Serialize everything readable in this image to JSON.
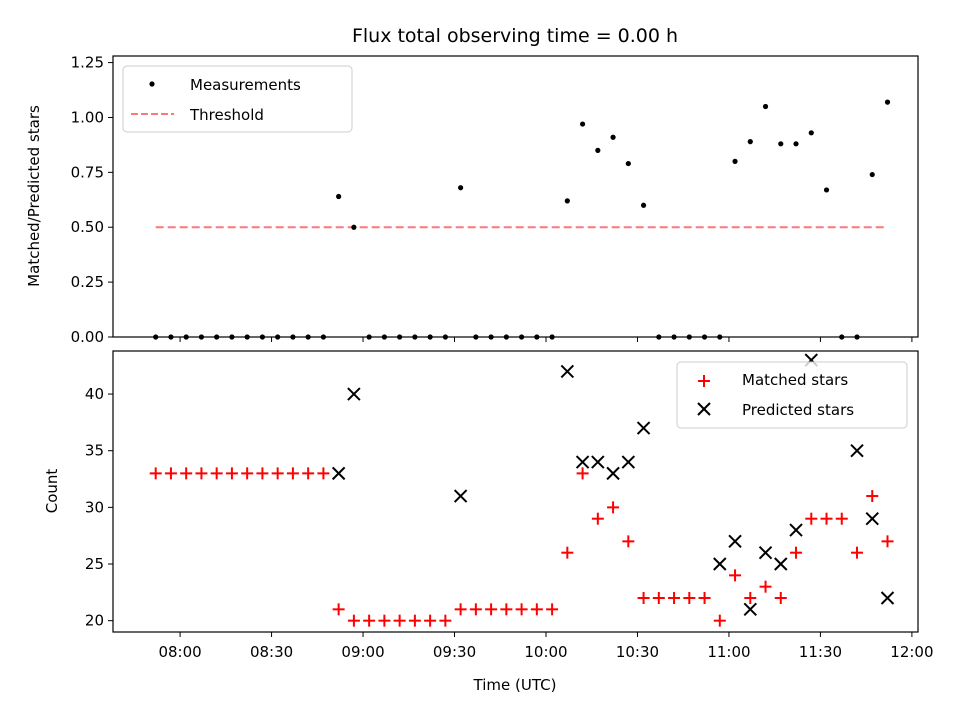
{
  "chart_data": [
    {
      "type": "scatter",
      "title": "Flux total observing time = 0.00 h",
      "xlabel": "",
      "ylabel": "Matched/Predicted stars",
      "ylim": [
        0,
        1.28
      ],
      "yticks": [
        "0.00",
        "0.25",
        "0.50",
        "0.75",
        "1.00",
        "1.25"
      ],
      "ytick_values": [
        0,
        0.25,
        0.5,
        0.75,
        1.0,
        1.25
      ],
      "legend_position": "top-left",
      "grid": false,
      "series": [
        {
          "name": "Measurements",
          "marker": "dot",
          "color": "#000000",
          "x": [
            "07:52",
            "07:57",
            "08:02",
            "08:07",
            "08:12",
            "08:17",
            "08:22",
            "08:27",
            "08:32",
            "08:37",
            "08:42",
            "08:47",
            "08:52",
            "08:57",
            "09:02",
            "09:07",
            "09:12",
            "09:17",
            "09:22",
            "09:27",
            "09:32",
            "09:37",
            "09:42",
            "09:47",
            "09:52",
            "09:57",
            "10:02",
            "10:07",
            "10:12",
            "10:17",
            "10:22",
            "10:27",
            "10:32",
            "10:37",
            "10:42",
            "10:47",
            "10:52",
            "10:57",
            "11:02",
            "11:07",
            "11:12",
            "11:17",
            "11:22",
            "11:27",
            "11:32",
            "11:37",
            "11:42",
            "11:47",
            "11:52"
          ],
          "y": [
            0,
            0,
            0,
            0,
            0,
            0,
            0,
            0,
            0,
            0,
            0,
            0,
            0.64,
            0.5,
            0,
            0,
            0,
            0,
            0,
            0,
            0.68,
            0,
            0,
            0,
            0,
            0,
            0,
            0.62,
            0.97,
            0.85,
            0.91,
            0.79,
            0.6,
            0,
            0,
            0,
            0,
            0,
            0.8,
            0.89,
            1.05,
            0.88,
            0.88,
            0.93,
            0.67,
            0,
            0,
            0.74,
            1.07
          ]
        },
        {
          "name": "Threshold",
          "line": "dashed",
          "color": "#ff7777",
          "x": [
            "07:52",
            "11:52"
          ],
          "y": [
            0.5,
            0.5
          ]
        }
      ]
    },
    {
      "type": "scatter",
      "xlabel": "Time (UTC)",
      "ylabel": "Count",
      "ylim": [
        19,
        43.8
      ],
      "yticks": [
        "20",
        "25",
        "30",
        "35",
        "40"
      ],
      "ytick_values": [
        20,
        25,
        30,
        35,
        40
      ],
      "xlim": [
        "07:38",
        "12:02"
      ],
      "xticks": [
        "08:00",
        "08:30",
        "09:00",
        "09:30",
        "10:00",
        "10:30",
        "11:00",
        "11:30",
        "12:00"
      ],
      "legend_position": "top-right",
      "grid": false,
      "series": [
        {
          "name": "Matched stars",
          "marker": "plus",
          "color": "#ff0000",
          "x": [
            "07:52",
            "07:57",
            "08:02",
            "08:07",
            "08:12",
            "08:17",
            "08:22",
            "08:27",
            "08:32",
            "08:37",
            "08:42",
            "08:47",
            "08:52",
            "08:57",
            "09:02",
            "09:07",
            "09:12",
            "09:17",
            "09:22",
            "09:27",
            "09:32",
            "09:37",
            "09:42",
            "09:47",
            "09:52",
            "09:57",
            "10:02",
            "10:07",
            "10:12",
            "10:17",
            "10:22",
            "10:27",
            "10:32",
            "10:37",
            "10:42",
            "10:47",
            "10:52",
            "10:57",
            "11:02",
            "11:07",
            "11:12",
            "11:17",
            "11:22",
            "11:27",
            "11:32",
            "11:37",
            "11:42",
            "11:47",
            "11:52"
          ],
          "y": [
            33,
            33,
            33,
            33,
            33,
            33,
            33,
            33,
            33,
            33,
            33,
            33,
            21,
            20,
            20,
            20,
            20,
            20,
            20,
            20,
            21,
            21,
            21,
            21,
            21,
            21,
            21,
            26,
            33,
            29,
            30,
            27,
            22,
            22,
            22,
            22,
            22,
            20,
            24,
            22,
            23,
            22,
            26,
            29,
            29,
            29,
            26,
            31,
            27
          ]
        },
        {
          "name": "Predicted stars",
          "marker": "cross",
          "color": "#000000",
          "x": [
            "08:52",
            "08:57",
            "09:32",
            "10:07",
            "10:12",
            "10:17",
            "10:22",
            "10:27",
            "10:32",
            "10:57",
            "11:02",
            "11:07",
            "11:12",
            "11:17",
            "11:22",
            "11:27",
            "11:42",
            "11:47",
            "11:52"
          ],
          "y": [
            33,
            40,
            31,
            42,
            34,
            34,
            33,
            34,
            37,
            25,
            27,
            21,
            26,
            25,
            28,
            43,
            35,
            29,
            22
          ]
        }
      ]
    }
  ],
  "colors": {
    "threshold": "#ff7777",
    "matched": "#ff0000",
    "predicted": "#000000",
    "measurements": "#000000"
  }
}
